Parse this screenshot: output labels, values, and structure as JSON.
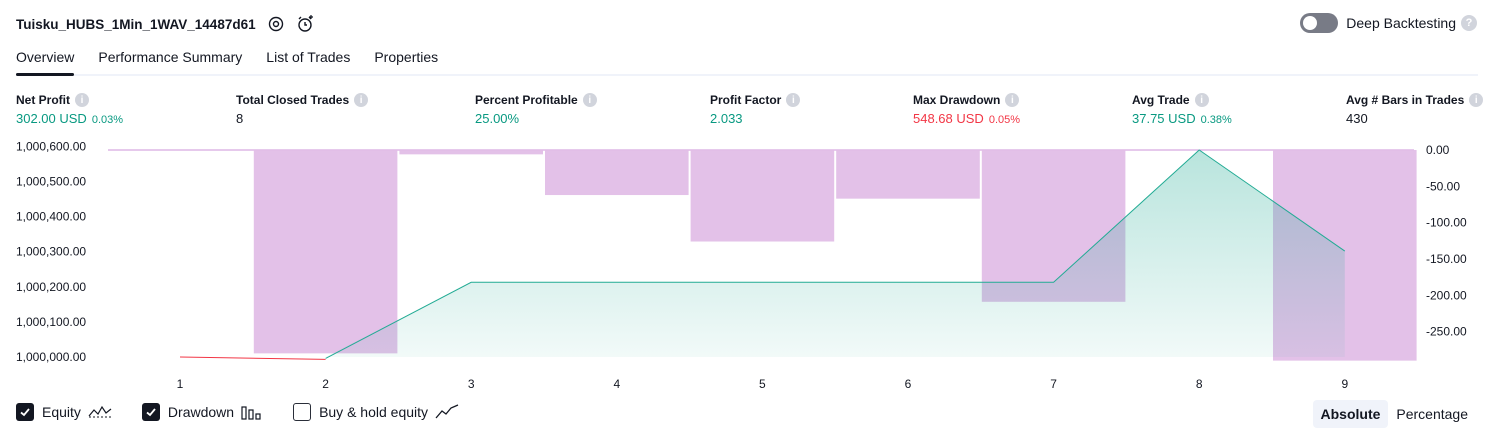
{
  "header": {
    "strategy_name": "Tuisku_HUBS_1Min_1WAV_14487d61",
    "settings_icon": "gear-icon",
    "alert_icon": "add-alert-clock-icon"
  },
  "deep_backtesting": {
    "label": "Deep Backtesting",
    "enabled": false,
    "help": "?"
  },
  "tabs": [
    {
      "label": "Overview",
      "active": true
    },
    {
      "label": "Performance Summary",
      "active": false
    },
    {
      "label": "List of Trades",
      "active": false
    },
    {
      "label": "Properties",
      "active": false
    }
  ],
  "metrics": {
    "net_profit": {
      "label": "Net Profit",
      "value": "302.00 USD",
      "pct": "0.03%"
    },
    "total_closed_trades": {
      "label": "Total Closed Trades",
      "value": "8"
    },
    "percent_profitable": {
      "label": "Percent Profitable",
      "value": "25.00%"
    },
    "profit_factor": {
      "label": "Profit Factor",
      "value": "2.033"
    },
    "max_drawdown": {
      "label": "Max Drawdown",
      "value": "548.68 USD",
      "pct": "0.05%"
    },
    "avg_trade": {
      "label": "Avg Trade",
      "value": "37.75 USD",
      "pct": "0.38%"
    },
    "avg_bars": {
      "label": "Avg # Bars in Trades",
      "value": "430"
    },
    "info_glyph": "i"
  },
  "chart_data": {
    "type": "line",
    "x": [
      1,
      2,
      3,
      4,
      5,
      6,
      7,
      8,
      9
    ],
    "x_tick_labels": [
      "1",
      "2",
      "3",
      "4",
      "5",
      "6",
      "7",
      "8",
      "9"
    ],
    "left_axis": {
      "ticks": [
        1000600,
        1000500,
        1000400,
        1000300,
        1000200,
        1000100,
        1000000
      ],
      "tick_labels": [
        "1,000,600.00",
        "1,000,500.00",
        "1,000,400.00",
        "1,000,300.00",
        "1,000,200.00",
        "1,000,100.00",
        "1,000,000.00"
      ],
      "ylim": [
        1000000,
        1000590
      ]
    },
    "right_axis": {
      "ticks": [
        0,
        -50,
        -100,
        -150,
        -200,
        -250
      ],
      "tick_labels": [
        "0.00",
        "-50.00",
        "-100.00",
        "-150.00",
        "-200.00",
        "-250.00"
      ],
      "ylim": [
        -285,
        0
      ]
    },
    "series": [
      {
        "name": "Equity",
        "axis": "left",
        "color": "#22ab94",
        "values": [
          1000000,
          999996,
          1000213,
          1000213,
          1000213,
          1000213,
          1000213,
          1000590,
          1000302
        ]
      },
      {
        "name": "Drawdown",
        "axis": "right",
        "color": "#ce93d8",
        "type": "bar",
        "values": [
          0,
          -280,
          -6,
          -62,
          -126,
          -67,
          -209,
          0,
          -290
        ]
      }
    ],
    "equity_negative_color": "#f23645",
    "grid": false,
    "colors": {
      "equity_line": "#22ab94",
      "drawdown_bar": "#e1bee7",
      "drawdown_line": "#ce93d8"
    }
  },
  "legend": {
    "equity": {
      "label": "Equity",
      "checked": true,
      "icon": "equity-line-icon"
    },
    "drawdown": {
      "label": "Drawdown",
      "checked": true,
      "icon": "drawdown-bars-icon"
    },
    "buy_hold": {
      "label": "Buy & hold equity",
      "checked": false,
      "icon": "buy-hold-line-icon"
    }
  },
  "mode": {
    "absolute": "Absolute",
    "percentage": "Percentage",
    "selected": "Absolute"
  }
}
